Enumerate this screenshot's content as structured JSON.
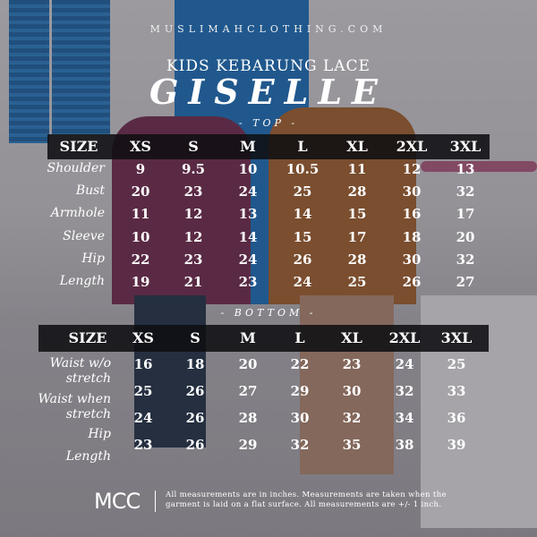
{
  "site": "MUSLIMAHCLOTHING.COM",
  "subtitle": "KIDS KEBARUNG LACE",
  "title": "GISELLE",
  "top": {
    "section": "- TOP -",
    "header": [
      "SIZE",
      "XS",
      "S",
      "M",
      "L",
      "XL",
      "2XL",
      "3XL"
    ],
    "rows": [
      {
        "label": "Shoulder",
        "values": [
          "9",
          "9.5",
          "10",
          "10.5",
          "11",
          "12",
          "13"
        ]
      },
      {
        "label": "Bust",
        "values": [
          "20",
          "23",
          "24",
          "25",
          "28",
          "30",
          "32"
        ]
      },
      {
        "label": "Armhole",
        "values": [
          "11",
          "12",
          "13",
          "14",
          "15",
          "16",
          "17"
        ]
      },
      {
        "label": "Sleeve",
        "values": [
          "10",
          "12",
          "14",
          "15",
          "17",
          "18",
          "20"
        ]
      },
      {
        "label": "Hip",
        "values": [
          "22",
          "23",
          "24",
          "26",
          "28",
          "30",
          "32"
        ]
      },
      {
        "label": "Length",
        "values": [
          "19",
          "21",
          "23",
          "24",
          "25",
          "26",
          "27"
        ]
      }
    ]
  },
  "bottom": {
    "section": "- BOTTOM -",
    "header": [
      "SIZE",
      "XS",
      "S",
      "M",
      "L",
      "XL",
      "2XL",
      "3XL"
    ],
    "labels": [
      "Waist w/o",
      "stretch",
      "Waist when",
      "stretch",
      "Hip",
      "Length"
    ],
    "rows": [
      [
        "16",
        "18",
        "20",
        "22",
        "23",
        "24",
        "25"
      ],
      [
        "25",
        "26",
        "27",
        "29",
        "30",
        "32",
        "33"
      ],
      [
        "24",
        "26",
        "28",
        "30",
        "32",
        "34",
        "36"
      ],
      [
        "23",
        "26",
        "29",
        "32",
        "35",
        "38",
        "39"
      ]
    ]
  },
  "footer": {
    "logo": "MCC",
    "note_line1": "All measurements are in inches. Measurements are taken when the",
    "note_line2": "garment is laid on a flat surface. All measurements are +/- 1 inch."
  }
}
